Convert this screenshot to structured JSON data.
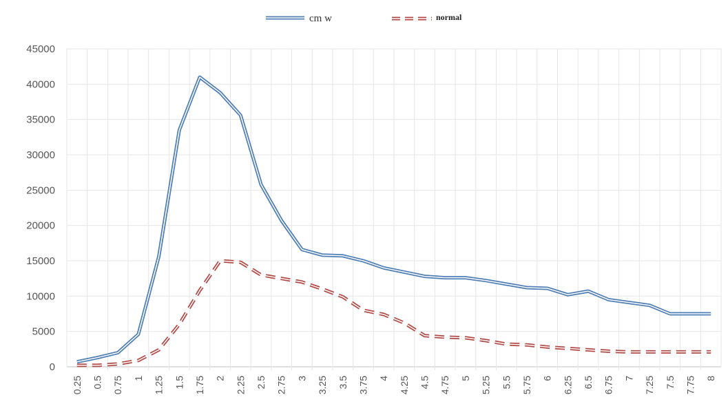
{
  "chart_data": {
    "type": "line",
    "title": "",
    "xlabel": "",
    "ylabel": "",
    "ylim": [
      0,
      45000
    ],
    "yticks": [
      "0",
      "5000",
      "10000",
      "15000",
      "20000",
      "25000",
      "30000",
      "35000",
      "40000",
      "45000"
    ],
    "grid": true,
    "legend_position": "top-center",
    "categories": [
      "0.25",
      "0.5",
      "0.75",
      "1",
      "1.25",
      "1.5",
      "1.75",
      "2",
      "2.25",
      "2.5",
      "2.75",
      "3",
      "3.25",
      "3.5",
      "3.75",
      "4",
      "4.25",
      "4.5",
      "4.75",
      "5",
      "5.25",
      "5.5",
      "5.75",
      "6",
      "6.25",
      "6.5",
      "6.75",
      "7",
      "7.25",
      "7.5",
      "7.75",
      "8"
    ],
    "series": [
      {
        "name": "cm w",
        "color": "#4f7fb5",
        "style": "double-line",
        "values": [
          700,
          1300,
          2000,
          4600,
          15600,
          33500,
          41000,
          38800,
          35600,
          25800,
          20700,
          16600,
          15800,
          15700,
          15000,
          14000,
          13400,
          12800,
          12600,
          12600,
          12200,
          11700,
          11200,
          11100,
          10200,
          10700,
          9500,
          9100,
          8700,
          7500,
          7500,
          7500
        ]
      },
      {
        "name": "normal",
        "color": "#b24a47",
        "style": "double-dashed",
        "values": [
          200,
          200,
          400,
          900,
          2400,
          6000,
          10800,
          15000,
          14800,
          13000,
          12500,
          12000,
          11000,
          9900,
          8000,
          7400,
          6200,
          4400,
          4200,
          4100,
          3700,
          3200,
          3100,
          2800,
          2600,
          2400,
          2200,
          2100,
          2100,
          2100,
          2100,
          2100
        ]
      }
    ]
  }
}
